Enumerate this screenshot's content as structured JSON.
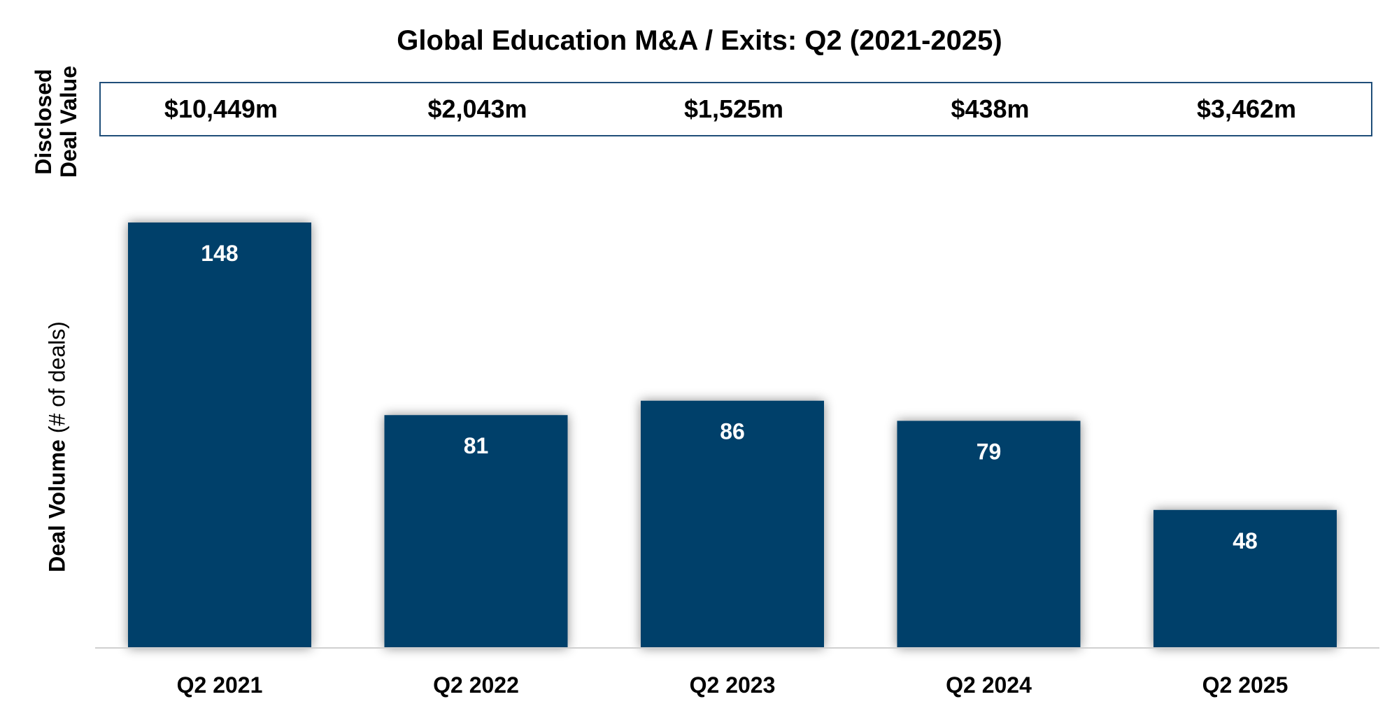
{
  "chart_data": {
    "type": "bar",
    "title": "Global Education M&A / Exits: Q2 (2021-2025)",
    "categories": [
      "Q2 2021",
      "Q2 2022",
      "Q2 2023",
      "Q2 2024",
      "Q2 2025"
    ],
    "values": [
      148,
      81,
      86,
      79,
      48
    ],
    "ylabel_main": "Deal Volume",
    "ylabel_sub": "(# of deals)",
    "ylim": [
      0,
      160
    ],
    "grid": false,
    "bar_color": "#003f6b",
    "disclosed_label_line1": "Disclosed",
    "disclosed_label_line2": "Deal Value",
    "disclosed_values": [
      "$10,449m",
      "$2,043m",
      "$1,525m",
      "$438m",
      "$3,462m"
    ]
  }
}
